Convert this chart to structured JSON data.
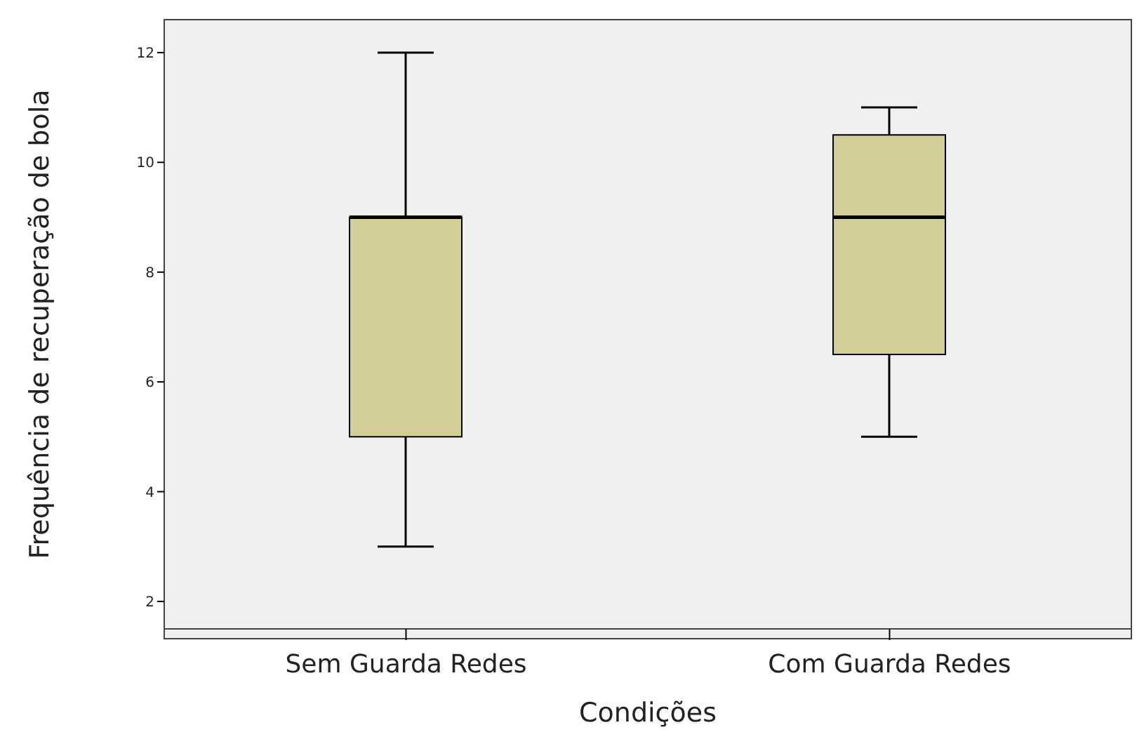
{
  "chart_data": {
    "type": "box",
    "xlabel": "Condições",
    "ylabel": "Frequência de recuperação de bola",
    "categories": [
      "Sem Guarda Redes",
      "Com Guarda Redes"
    ],
    "boxes": [
      {
        "low": 3,
        "q1": 5,
        "median": 9,
        "q3": 9,
        "high": 12
      },
      {
        "low": 5,
        "q1": 6.5,
        "median": 9,
        "q3": 10.5,
        "high": 11
      }
    ],
    "color": "#d3ce97",
    "ylim": [
      1.5,
      12.6
    ],
    "yticks": [
      2,
      4,
      6,
      8,
      10,
      12
    ]
  }
}
